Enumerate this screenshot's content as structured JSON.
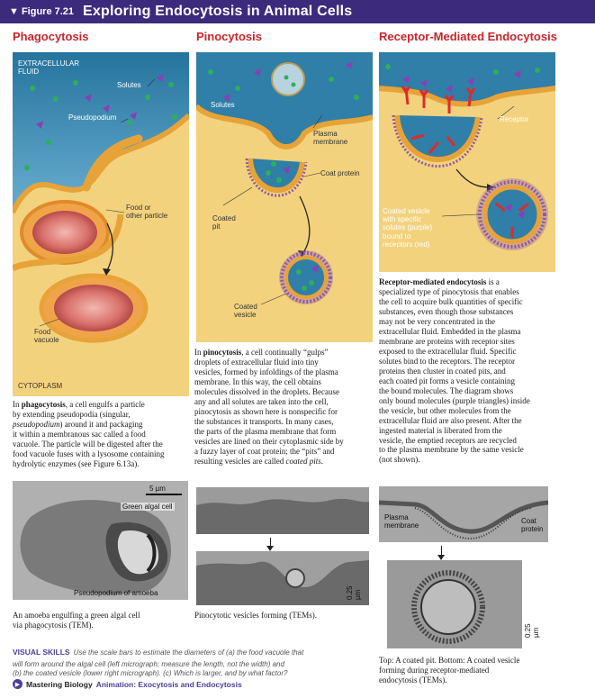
{
  "banner": {
    "figure": "▼ Figure 7.21",
    "title": "Exploring Endocytosis in Animal Cells"
  },
  "columns": {
    "phagocytosis": "Phagocytosis",
    "pinocytosis": "Pinocytosis",
    "receptor": "Receptor-Mediated Endocytosis"
  },
  "phago_labels": {
    "extracellular": "EXTRACELLULAR",
    "fluid": "FLUID",
    "solutes": "Solutes",
    "pseudopodium": "Pseudopodium",
    "food1": "Food or",
    "food2": "other particle",
    "vac1": "Food",
    "vac2": "vacuole",
    "cytoplasm": "CYTOPLASM"
  },
  "pino_labels": {
    "solutes": "Solutes",
    "pm1": "Plasma",
    "pm2": "membrane",
    "coat": "Coat protein",
    "cpit1": "Coated",
    "cpit2": "pit",
    "cves1": "Coated",
    "cves2": "vesicle"
  },
  "rme_labels": {
    "receptor": "Receptor",
    "cv1": "Coated vesicle",
    "cv2": "with specific",
    "cv3": "solutes (purple)",
    "cv4": "bound to",
    "cv5": "receptors (red)"
  },
  "phago_text": {
    "l1a": "In ",
    "l1b": "phagocytosis",
    "l1c": ", a cell engulfs a particle",
    "l2": "by extending pseudopodia (singular,",
    "l3a": "pseudopodium",
    "l3b": ") around it and packaging",
    "l4": "it within a membranous sac called a food",
    "l5": "vacuole. The particle will be digested after the",
    "l6": "food vacuole fuses with a lysosome containing",
    "l7": "hydrolytic enzymes (see Figure 6.13a)."
  },
  "pino_text": {
    "l1a": "In ",
    "l1b": "pinocytosis",
    "l1c": ", a cell continually “gulps”",
    "l2": "droplets of extracellular fluid into tiny",
    "l3": "vesicles, formed by infoldings of the plasma",
    "l4": "membrane. In this way, the cell obtains",
    "l5": "molecules dissolved in the droplets. Because",
    "l6": "any and all solutes are taken into the cell,",
    "l7": "pinocytosis as shown here is nonspecific for",
    "l8": "the substances it transports. In many cases,",
    "l9": "the parts of the plasma membrane that form",
    "l10": "vesicles are lined on their cytoplasmic side by",
    "l11": "a fuzzy layer of coat protein; the “pits” and",
    "l12a": "resulting vesicles are called ",
    "l12b": "coated pits",
    "l12c": "."
  },
  "rme_text": {
    "l1a": "Receptor-mediated endocytosis",
    "l1b": " is a",
    "l2": "specialized type of pinocytosis that enables",
    "l3": "the cell to acquire bulk quantities of specific",
    "l4": "substances, even though those substances",
    "l5": "may not be very concentrated in the",
    "l6": "extracellular fluid. Embedded in the plasma",
    "l7": "membrane are proteins with receptor sites",
    "l8": "exposed to the extracellular fluid. Specific",
    "l9": "solutes bind to the receptors. The receptor",
    "l10": "proteins then cluster in coated pits, and",
    "l11": "each coated pit forms a vesicle containing",
    "l12": "the bound molecules. The diagram shows",
    "l13": "only bound molecules (purple triangles) inside",
    "l14": "the vesicle, but other molecules from the",
    "l15": "extracellular fluid are also present. After the",
    "l16": "ingested material is liberated from the",
    "l17": "vesicle, the emptied receptors are recycled",
    "l18": "to the plasma membrane by the same vesicle",
    "l19": "(not shown)."
  },
  "micro_labels": {
    "scale1": "5 µm",
    "algal": "Green algal cell",
    "pseudo_amoeba": "Pseudopodium of amoeba",
    "scale2": "0.25 µm",
    "pm1": "Plasma",
    "pm2": "membrane",
    "coat1": "Coat",
    "coat2": "protein",
    "scale3": "0.25 µm"
  },
  "captions": {
    "phago1": "An amoeba engulfing a green algal cell",
    "phago2": "via phagocytosis (TEM).",
    "pino": "Pinocytotic vesicles forming (TEMs).",
    "rme1": "Top: A coated pit. Bottom: A coated vesicle",
    "rme2": "forming during receptor-mediated",
    "rme3": "endocytosis (TEMs)."
  },
  "visual_skills": {
    "label": "VISUAL SKILLS",
    "l1": "Use the scale bars to estimate the diameters of (a) the food vacuole that",
    "l2": "will form around the algal cell (left micrograph; measure the length, not the width) and",
    "l3": "(b) the coated vesicle (lower right micrograph). (c) Which is larger, and by what factor?"
  },
  "mastering": {
    "brand": "Mastering Biology",
    "animation": "Animation: Exocytosis and Endocytosis"
  },
  "colors": {
    "banner": "#3c2a7c",
    "heading": "#c8262b",
    "fluid": "#2f7fa8",
    "cytoplasm": "#f2cd74",
    "membrane": "#e8a33a",
    "coat": "#8e5aa8",
    "receptor": "#e02a2a",
    "solute_green": "#2fae5a",
    "solute_purple": "#8a3fb5"
  }
}
